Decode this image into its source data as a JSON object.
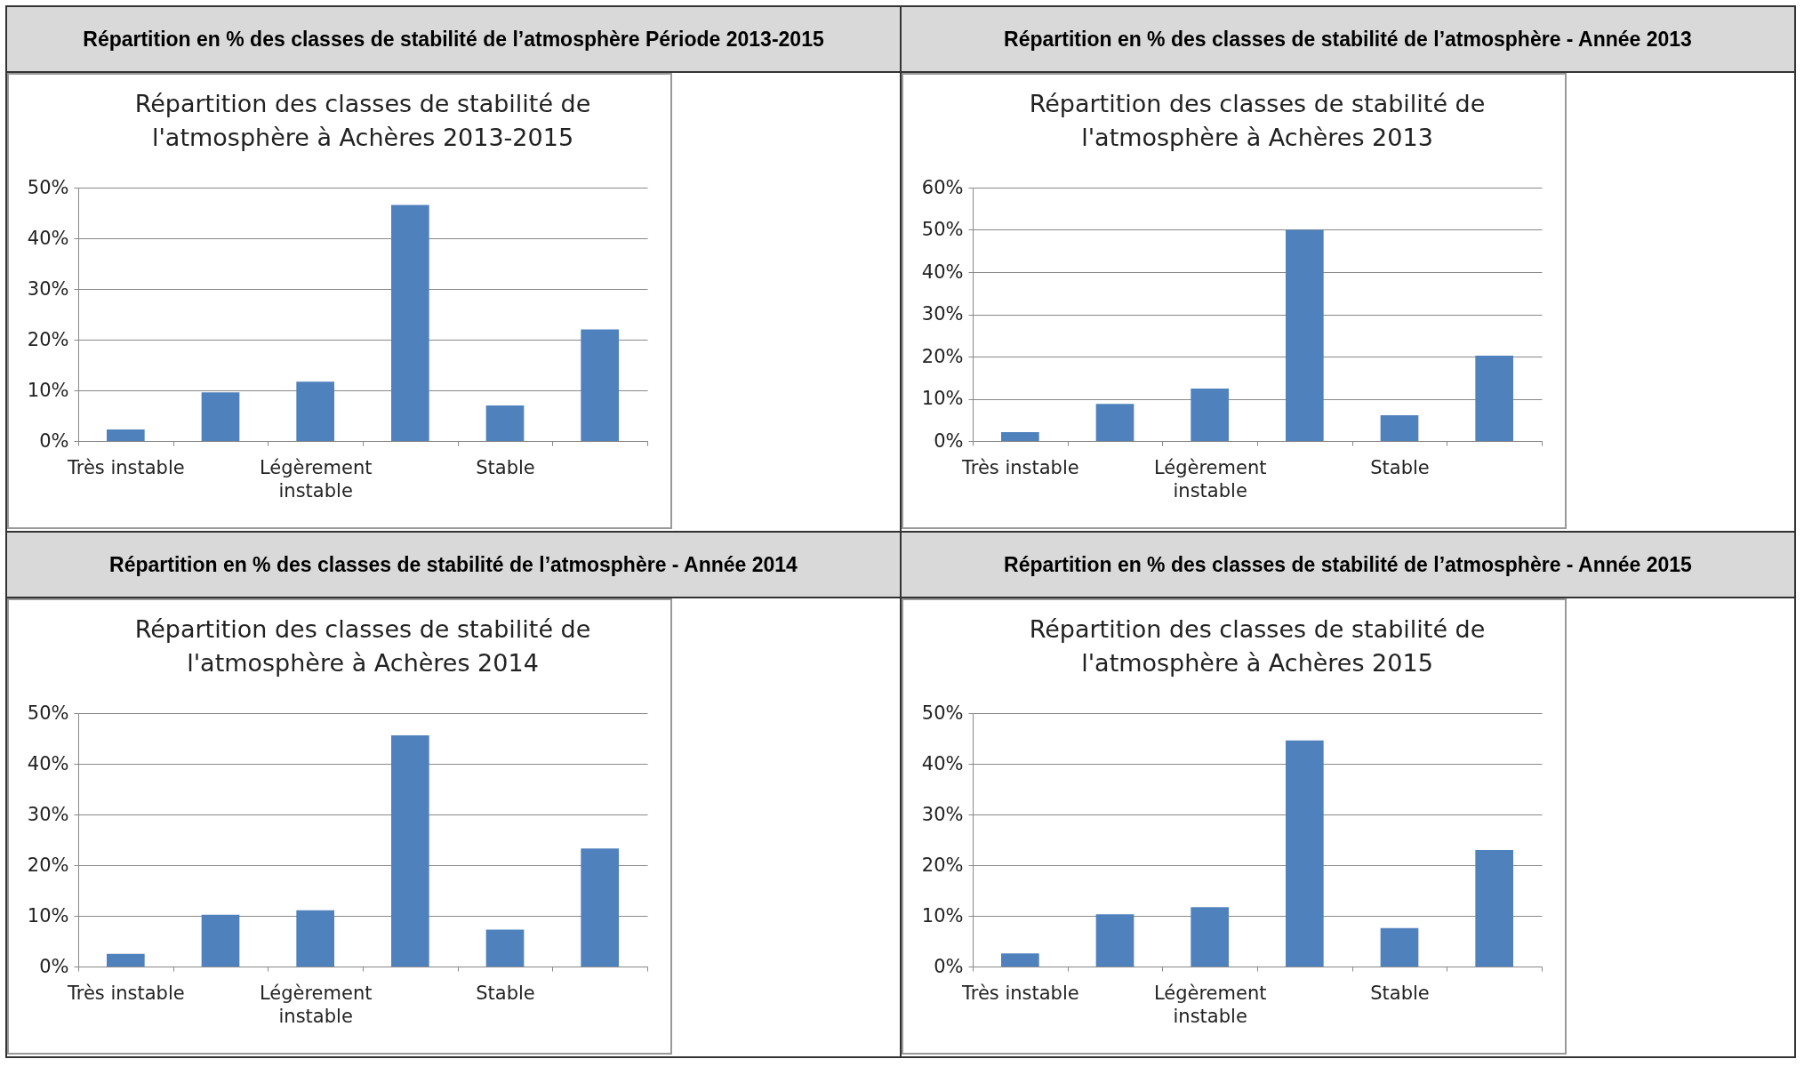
{
  "chart_data": [
    {
      "type": "bar",
      "title": "Répartition en % des classes de stabilité de l’atmosphère Période 2013-2015",
      "subtitle": "Répartition des classes de stabilité de l'atmosphère à Achères 2013-2015",
      "categories": [
        "Très instable",
        null,
        "Légèrement instable",
        null,
        "Stable",
        null
      ],
      "values": [
        2.3,
        9.6,
        11.7,
        46.6,
        7.0,
        22.0
      ],
      "color": "#4f81bd",
      "ylim": [
        0,
        50
      ],
      "yticks": [
        {
          "value": 0,
          "label": "0%"
        },
        {
          "value": 10,
          "label": "10%"
        },
        {
          "value": 20,
          "label": "20%"
        },
        {
          "value": 30,
          "label": "30%"
        },
        {
          "value": 40,
          "label": "40%"
        },
        {
          "value": 50,
          "label": "50%"
        }
      ],
      "grid": "y"
    },
    {
      "type": "bar",
      "title": "Répartition en % des classes de stabilité de l’atmosphère - Année 2013",
      "subtitle": "Répartition des classes de stabilité de l'atmosphère à Achères 2013",
      "categories": [
        "Très instable",
        null,
        "Légèrement instable",
        null,
        "Stable",
        null
      ],
      "values": [
        2.1,
        8.8,
        12.4,
        50.0,
        6.1,
        20.2
      ],
      "color": "#4f81bd",
      "ylim": [
        0,
        60
      ],
      "yticks": [
        {
          "value": 0,
          "label": "0%"
        },
        {
          "value": 10,
          "label": "10%"
        },
        {
          "value": 20,
          "label": "20%"
        },
        {
          "value": 30,
          "label": "30%"
        },
        {
          "value": 40,
          "label": "40%"
        },
        {
          "value": 50,
          "label": "50%"
        },
        {
          "value": 60,
          "label": "60%"
        }
      ],
      "grid": "y"
    },
    {
      "type": "bar",
      "title": "Répartition en % des classes de stabilité de l’atmosphère - Année 2014",
      "subtitle": "Répartition des classes de stabilité de l'atmosphère à Achères 2014",
      "categories": [
        "Très instable",
        null,
        "Légèrement instable",
        null,
        "Stable",
        null
      ],
      "values": [
        2.5,
        10.2,
        11.1,
        45.6,
        7.3,
        23.3
      ],
      "color": "#4f81bd",
      "ylim": [
        0,
        50
      ],
      "yticks": [
        {
          "value": 0,
          "label": "0%"
        },
        {
          "value": 10,
          "label": "10%"
        },
        {
          "value": 20,
          "label": "20%"
        },
        {
          "value": 30,
          "label": "30%"
        },
        {
          "value": 40,
          "label": "40%"
        },
        {
          "value": 50,
          "label": "50%"
        }
      ],
      "grid": "y"
    },
    {
      "type": "bar",
      "title": "Répartition en % des classes de stabilité de l’atmosphère - Année 2015",
      "subtitle": "Répartition des classes de stabilité de l'atmosphère à Achères 2015",
      "categories": [
        "Très instable",
        null,
        "Légèrement instable",
        null,
        "Stable",
        null
      ],
      "values": [
        2.6,
        10.3,
        11.7,
        44.6,
        7.6,
        23.0
      ],
      "color": "#4f81bd",
      "ylim": [
        0,
        50
      ],
      "yticks": [
        {
          "value": 0,
          "label": "0%"
        },
        {
          "value": 10,
          "label": "10%"
        },
        {
          "value": 20,
          "label": "20%"
        },
        {
          "value": 30,
          "label": "30%"
        },
        {
          "value": 40,
          "label": "40%"
        },
        {
          "value": 50,
          "label": "50%"
        }
      ],
      "grid": "y"
    }
  ]
}
